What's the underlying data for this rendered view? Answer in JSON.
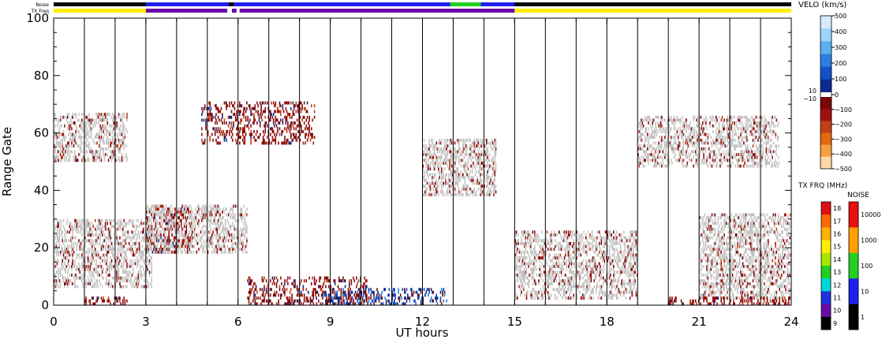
{
  "chart_data": {
    "type": "heatmap",
    "xlabel": "UT hours",
    "ylabel": "Range Gate",
    "x_ticks": [
      "0",
      "3",
      "6",
      "9",
      "12",
      "15",
      "18",
      "21",
      "24"
    ],
    "y_ticks": [
      "0",
      "20",
      "40",
      "60",
      "80",
      "100"
    ],
    "xlim": [
      0,
      24
    ],
    "ylim": [
      0,
      100
    ],
    "strip_labels": {
      "noise": "Noise",
      "txfreq": "TX Freq"
    },
    "noise_strip": [
      {
        "start": 0,
        "end": 3,
        "level": "1"
      },
      {
        "start": 3,
        "end": 5.7,
        "level": "10"
      },
      {
        "start": 5.85,
        "end": 12.9,
        "level": "10"
      },
      {
        "start": 12.9,
        "end": 13.9,
        "level": "100"
      },
      {
        "start": 13.9,
        "end": 15,
        "level": "10"
      },
      {
        "start": 15,
        "end": 24,
        "level": "1"
      }
    ],
    "txfreq_strip": [
      {
        "start": 0,
        "end": 3,
        "level": "15"
      },
      {
        "start": 3,
        "end": 5.65,
        "level": "10"
      },
      {
        "start": 5.8,
        "end": 5.95,
        "level": "10"
      },
      {
        "start": 6.05,
        "end": 15,
        "level": "10"
      },
      {
        "start": 15,
        "end": 24,
        "level": "15"
      }
    ],
    "velocity_scale": {
      "title": "VELO (km/s)",
      "ticks": [
        "500",
        "400",
        "300",
        "200",
        "100",
        "0",
        "−100",
        "−200",
        "−300",
        "−400",
        "−500"
      ],
      "inner_labels": [
        "10",
        "−10"
      ],
      "colors": [
        "#d6ecff",
        "#9cd3f8",
        "#5db0ee",
        "#2a7fe0",
        "#1450c8",
        "#0a2a90",
        "#7a0808",
        "#a01010",
        "#c04018",
        "#e06810",
        "#f5a040",
        "#ffd8a8"
      ]
    },
    "txfreq_scale": {
      "title": "TX FRQ (MHz)",
      "ticks": [
        "18",
        "17",
        "16",
        "15",
        "14",
        "13",
        "12",
        "11",
        "10",
        "9"
      ],
      "colors": [
        "#dd1010",
        "#ff6a00",
        "#ffb000",
        "#ffee00",
        "#a8e800",
        "#22d022",
        "#00d8d8",
        "#2030e0",
        "#6a0ca8",
        "#000000"
      ]
    },
    "noise_scale": {
      "title": "NOISE",
      "ticks": [
        "10000",
        "1000",
        "100",
        "10",
        "1"
      ],
      "colors": [
        "#e81010",
        "#ffa000",
        "#22d022",
        "#2020ee",
        "#000000"
      ]
    },
    "series": [
      {
        "start": 0.0,
        "end": 2.4,
        "gate_low": 50,
        "gate_high": 67,
        "kind": "scatter"
      },
      {
        "start": 0.0,
        "end": 3.2,
        "gate_low": 6,
        "gate_high": 30,
        "kind": "scatter"
      },
      {
        "start": 1.0,
        "end": 2.4,
        "gate_low": 0,
        "gate_high": 3,
        "kind": "negative"
      },
      {
        "start": 3.0,
        "end": 4.5,
        "gate_low": 18,
        "gate_high": 34,
        "kind": "negative"
      },
      {
        "start": 3.0,
        "end": 6.3,
        "gate_low": 18,
        "gate_high": 35,
        "kind": "scatter"
      },
      {
        "start": 4.8,
        "end": 8.5,
        "gate_low": 56,
        "gate_high": 71,
        "kind": "negative"
      },
      {
        "start": 6.3,
        "end": 10.2,
        "gate_low": 0,
        "gate_high": 10,
        "kind": "negative"
      },
      {
        "start": 8.8,
        "end": 12.8,
        "gate_low": 0,
        "gate_high": 6,
        "kind": "positive"
      },
      {
        "start": 12.0,
        "end": 14.4,
        "gate_low": 38,
        "gate_high": 58,
        "kind": "scatter"
      },
      {
        "start": 15.0,
        "end": 19.0,
        "gate_low": 2,
        "gate_high": 26,
        "kind": "scatter"
      },
      {
        "start": 19.0,
        "end": 23.6,
        "gate_low": 48,
        "gate_high": 66,
        "kind": "scatter"
      },
      {
        "start": 21.0,
        "end": 24.0,
        "gate_low": 2,
        "gate_high": 32,
        "kind": "scatter"
      },
      {
        "start": 20.0,
        "end": 24.0,
        "gate_low": 0,
        "gate_high": 3,
        "kind": "negative"
      }
    ]
  }
}
